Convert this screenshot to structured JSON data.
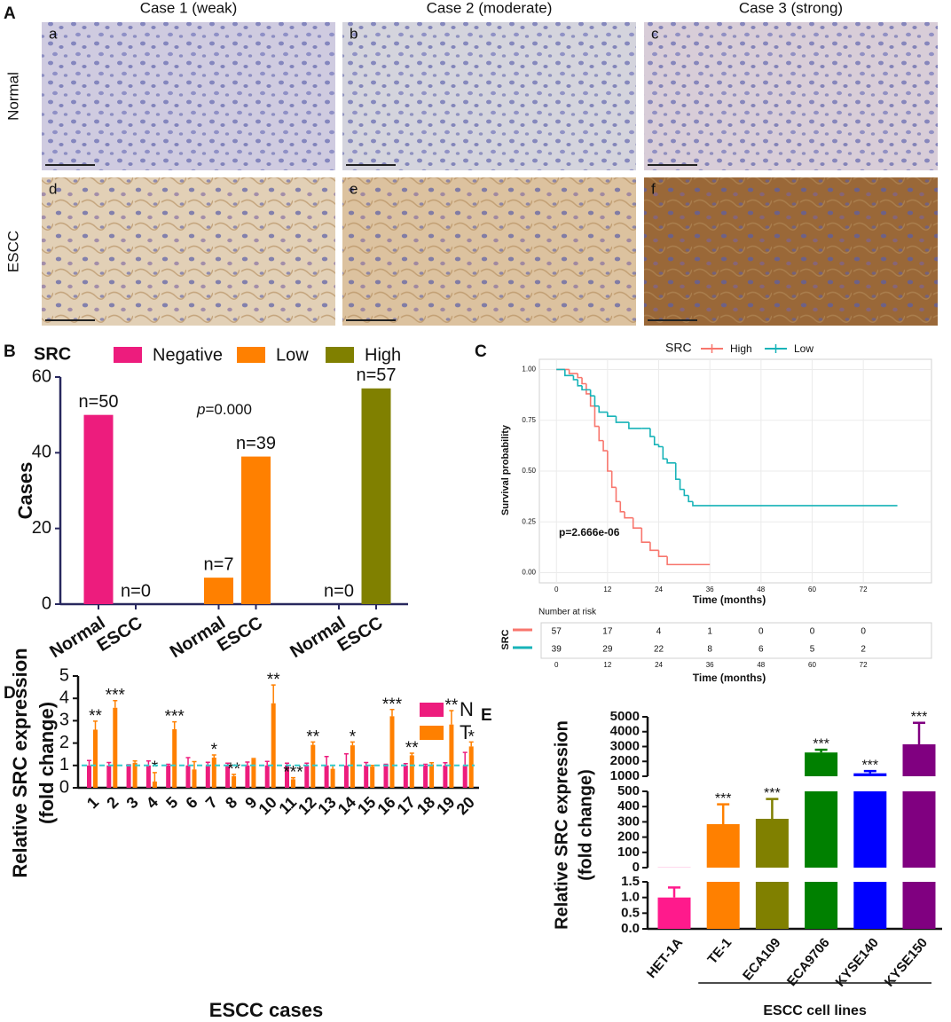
{
  "chart_data": [
    {
      "panel": "A",
      "type": "image-grid",
      "columns": [
        "Case 1 (weak)",
        "Case 2 (moderate)",
        "Case 3 (strong)"
      ],
      "rows": [
        "Normal",
        "ESCC"
      ],
      "images": [
        "a",
        "b",
        "c",
        "d",
        "e",
        "f"
      ]
    },
    {
      "panel": "B",
      "type": "bar",
      "legend_title": "SRC",
      "ylabel": "Cases",
      "categories": [
        "Normal",
        "ESCC",
        "Normal",
        "ESCC",
        "Normal",
        "ESCC"
      ],
      "ylim": [
        0,
        60
      ],
      "yticks": [
        0,
        20,
        40,
        60
      ],
      "annotation": [
        "p",
        "=0.000"
      ],
      "series": [
        {
          "name": "Negative",
          "color": "#ed1c7d",
          "values": [
            50,
            0,
            null,
            null,
            null,
            null
          ],
          "value_labels": [
            "n=50",
            "n=0",
            null,
            null,
            null,
            null
          ]
        },
        {
          "name": "Low",
          "color": "#ff8000",
          "values": [
            null,
            null,
            7,
            39,
            null,
            null
          ],
          "value_labels": [
            null,
            null,
            "n=7",
            "n=39",
            null,
            null
          ]
        },
        {
          "name": "High",
          "color": "#808000",
          "values": [
            null,
            null,
            null,
            null,
            0,
            57
          ],
          "value_labels": [
            null,
            null,
            null,
            null,
            "n=0",
            "n=57"
          ]
        }
      ]
    },
    {
      "panel": "C",
      "type": "survival",
      "legend_title": "SRC",
      "ylabel": "Survival probability",
      "xlabel": "Time (months)",
      "xlim": [
        -4,
        88
      ],
      "xticks": [
        0,
        12,
        24,
        36,
        48,
        60,
        72
      ],
      "ylim": [
        -0.05,
        1.05
      ],
      "yticks": [
        {
          "value": 0,
          "label": "0.00"
        },
        {
          "value": 0.25,
          "label": "0.25"
        },
        {
          "value": 0.5,
          "label": "0.50"
        },
        {
          "value": 0.75,
          "label": "0.75"
        },
        {
          "value": 1,
          "label": "1.00"
        }
      ],
      "grid": true,
      "annotation": "p=2.666e-06",
      "series": [
        {
          "name": "High",
          "color": "#f8766d",
          "x": [
            0,
            3,
            5,
            6,
            7,
            8,
            9,
            10,
            11,
            12,
            13,
            14,
            15,
            16,
            18,
            20,
            22,
            24,
            26,
            36
          ],
          "values": [
            1,
            0.98,
            0.96,
            0.93,
            0.88,
            0.82,
            0.72,
            0.65,
            0.6,
            0.5,
            0.42,
            0.35,
            0.3,
            0.27,
            0.22,
            0.15,
            0.11,
            0.08,
            0.04,
            0.04
          ]
        },
        {
          "name": "Low",
          "color": "#17b3b8",
          "x": [
            0,
            2,
            4,
            5,
            6,
            8,
            9,
            10,
            12,
            14,
            17,
            20,
            22,
            23,
            24,
            25,
            26,
            28,
            29,
            30,
            31,
            32,
            80
          ],
          "values": [
            1,
            0.97,
            0.95,
            0.92,
            0.9,
            0.87,
            0.82,
            0.79,
            0.77,
            0.74,
            0.71,
            0.71,
            0.67,
            0.63,
            0.62,
            0.56,
            0.54,
            0.46,
            0.41,
            0.38,
            0.35,
            0.33,
            0.33
          ]
        }
      ],
      "risk_table": {
        "title": "Number at risk",
        "label": "SRC",
        "rows": [
          [
            57,
            17,
            4,
            1,
            0,
            0,
            0
          ],
          [
            39,
            29,
            22,
            8,
            6,
            5,
            2
          ]
        ]
      }
    },
    {
      "panel": "D",
      "type": "grouped-bar",
      "ylabel": [
        "Relative SRC expression",
        "(fold change)"
      ],
      "xlabel": "ESCC cases",
      "categories": [
        "1",
        "2",
        "3",
        "4",
        "5",
        "6",
        "7",
        "8",
        "9",
        "10",
        "11",
        "12",
        "13",
        "14",
        "15",
        "16",
        "17",
        "18",
        "19",
        "20"
      ],
      "ylim": [
        0,
        5
      ],
      "yticks": [
        0,
        1,
        2,
        3,
        4,
        5
      ],
      "reference_line": 1,
      "reference_color": "#33cccc",
      "series": [
        {
          "name": "N",
          "color": "#ed1c7d",
          "values": [
            1,
            1,
            1,
            1,
            1,
            1,
            1,
            1,
            1,
            1,
            1,
            1,
            1,
            1,
            1,
            1,
            1,
            1,
            1,
            1
          ],
          "errors": [
            0.22,
            0.13,
            0.03,
            0.2,
            0.05,
            0.35,
            0.14,
            0.1,
            0.15,
            0.18,
            0.1,
            0.1,
            0.4,
            0.52,
            0.13,
            0.05,
            0.08,
            0.05,
            0.12,
            0.58
          ]
        },
        {
          "name": "T",
          "color": "#ff8000",
          "values": [
            2.6,
            3.58,
            1.12,
            0.28,
            2.62,
            0.82,
            1.35,
            0.52,
            1.28,
            3.78,
            0.38,
            1.92,
            0.85,
            1.9,
            0.95,
            3.2,
            1.45,
            1.05,
            2.83,
            1.85
          ],
          "errors": [
            0.38,
            0.32,
            0.08,
            0.4,
            0.33,
            0.35,
            0.12,
            0.08,
            0.03,
            0.82,
            0.07,
            0.13,
            0.15,
            0.15,
            0.05,
            0.3,
            0.1,
            0.07,
            0.62,
            0.2
          ],
          "significance": [
            "**",
            "***",
            null,
            "*",
            "***",
            null,
            "*",
            "**",
            null,
            "**",
            "***",
            "**",
            null,
            "*",
            null,
            "***",
            "**",
            null,
            "**",
            "*"
          ]
        }
      ]
    },
    {
      "panel": "E",
      "type": "broken-bar",
      "ylabel": [
        "Relative SRC expression",
        "(fold change)"
      ],
      "xlabel": "ESCC cell lines",
      "categories": [
        "HET-1A",
        "TE-1",
        "ECA109",
        "ECA9706",
        "KYSE140",
        "KYSE150"
      ],
      "colors": [
        "#ff1a8c",
        "#ff8000",
        "#808000",
        "#008000",
        "#0000ff",
        "#800080"
      ],
      "values": [
        1.0,
        285,
        320,
        2600,
        1200,
        3150
      ],
      "errors": [
        0.32,
        130,
        130,
        180,
        150,
        1450
      ],
      "significance": [
        null,
        "***",
        "***",
        "***",
        "***",
        "***"
      ],
      "y_segments": [
        {
          "ylim": [
            0,
            1.5
          ],
          "yticks": [
            {
              "value": 0,
              "label": "0.0"
            },
            {
              "value": 0.5,
              "label": "0.5"
            },
            {
              "value": 1,
              "label": "1.0"
            },
            {
              "value": 1.5,
              "label": "1.5"
            }
          ]
        },
        {
          "ylim": [
            0,
            500
          ],
          "yticks": [
            0,
            100,
            200,
            300,
            400,
            500
          ]
        },
        {
          "ylim": [
            1000,
            5000
          ],
          "yticks": [
            1000,
            2000,
            3000,
            4000,
            5000
          ]
        }
      ]
    }
  ]
}
